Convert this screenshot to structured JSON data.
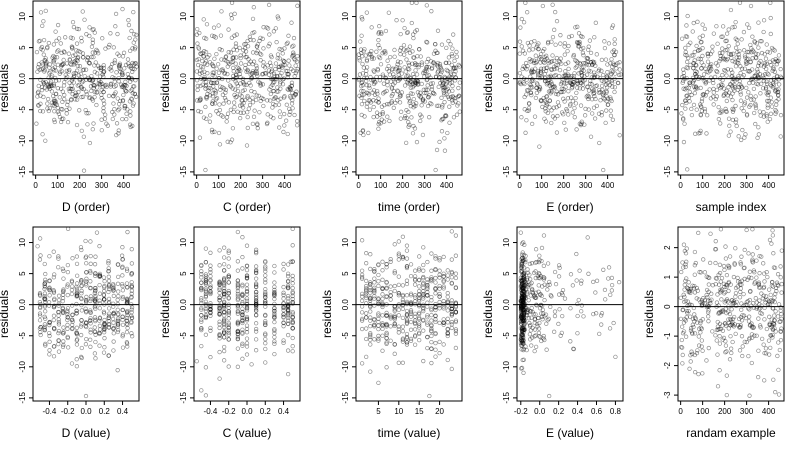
{
  "chart_data": [
    {
      "type": "scatter",
      "title": "",
      "xlabel": "D (order)",
      "ylabel": "residuals",
      "xlim": [
        -12,
        470
      ],
      "ylim": [
        -15.5,
        12.5
      ],
      "xticks": [
        0,
        100,
        200,
        300,
        400
      ],
      "xtick_labels": [
        "0",
        "100",
        "200",
        "300",
        "400"
      ],
      "yticks": [
        -15,
        -10,
        -5,
        0,
        5,
        10
      ],
      "ytick_labels": [
        "-15",
        "-10",
        "-5",
        "0.0",
        "5",
        "10"
      ],
      "hline": 0,
      "grid": false,
      "n_points": 470,
      "point_color": "#000000",
      "point_opacity": 0.45,
      "points": [
        [
          30,
          8.5
        ],
        [
          60,
          -5.2
        ],
        [
          95,
          6.1
        ],
        [
          130,
          -3.3
        ],
        [
          170,
          9.1
        ],
        [
          210,
          -8.4
        ],
        [
          220,
          -14.8
        ],
        [
          260,
          4.2
        ],
        [
          300,
          -6.6
        ],
        [
          340,
          7.3
        ],
        [
          395,
          11.2
        ],
        [
          430,
          -7.4
        ],
        [
          455,
          2.5
        ]
      ]
    },
    {
      "type": "scatter",
      "title": "",
      "xlabel": "C (order)",
      "ylabel": "residuals",
      "xlim": [
        -12,
        470
      ],
      "ylim": [
        -15.5,
        12.5
      ],
      "xticks": [
        0,
        100,
        200,
        300,
        400
      ],
      "xtick_labels": [
        "0",
        "100",
        "200",
        "300",
        "400"
      ],
      "yticks": [
        -15,
        -10,
        -5,
        0,
        5,
        10
      ],
      "ytick_labels": [
        "-15",
        "-10",
        "-5",
        "0.0",
        "5",
        "10"
      ],
      "hline": 0,
      "grid": false,
      "n_points": 470,
      "point_color": "#000000",
      "point_opacity": 0.45,
      "points": [
        [
          15,
          -9.5
        ],
        [
          40,
          -14.7
        ],
        [
          80,
          6.8
        ],
        [
          120,
          -6.1
        ],
        [
          160,
          9.7
        ],
        [
          230,
          -5.4
        ],
        [
          260,
          11.5
        ],
        [
          320,
          -7.3
        ],
        [
          360,
          8.1
        ],
        [
          410,
          -4.2
        ],
        [
          440,
          5.3
        ]
      ]
    },
    {
      "type": "scatter",
      "title": "",
      "xlabel": "time (order)",
      "ylabel": "residuals",
      "xlim": [
        -12,
        470
      ],
      "ylim": [
        -15.5,
        12.5
      ],
      "xticks": [
        0,
        100,
        200,
        300,
        400
      ],
      "xtick_labels": [
        "0",
        "100",
        "200",
        "300",
        "400"
      ],
      "yticks": [
        -15,
        -10,
        -5,
        0,
        5,
        10
      ],
      "ytick_labels": [
        "-15",
        "-10",
        "-5",
        "0.0",
        "5",
        "10"
      ],
      "hline": 0,
      "grid": false,
      "n_points": 470,
      "point_color": "#000000",
      "point_opacity": 0.45,
      "points": [
        [
          20,
          -8.3
        ],
        [
          90,
          6.2
        ],
        [
          140,
          -6.8
        ],
        [
          200,
          9.4
        ],
        [
          250,
          -4.6
        ],
        [
          310,
          11.8
        ],
        [
          350,
          -14.7
        ],
        [
          390,
          -9.6
        ],
        [
          430,
          7.1
        ],
        [
          460,
          -5.3
        ]
      ]
    },
    {
      "type": "scatter",
      "title": "",
      "xlabel": "E (order)",
      "ylabel": "residuals",
      "xlim": [
        -12,
        470
      ],
      "ylim": [
        -15.5,
        12.5
      ],
      "xticks": [
        0,
        100,
        200,
        300,
        400
      ],
      "xtick_labels": [
        "0",
        "100",
        "200",
        "300",
        "400"
      ],
      "yticks": [
        -15,
        -10,
        -5,
        0,
        5,
        10
      ],
      "ytick_labels": [
        "-15",
        "-10",
        "-5",
        "0.0",
        "5",
        "10"
      ],
      "hline": 0,
      "grid": false,
      "n_points": 470,
      "point_color": "#000000",
      "point_opacity": 0.45,
      "points": [
        [
          10,
          9.6
        ],
        [
          70,
          -6.1
        ],
        [
          150,
          11.9
        ],
        [
          210,
          -8.2
        ],
        [
          270,
          7.3
        ],
        [
          330,
          -5.6
        ],
        [
          380,
          -14.7
        ],
        [
          420,
          8.2
        ],
        [
          455,
          -9.1
        ]
      ]
    },
    {
      "type": "scatter",
      "title": "",
      "xlabel": "sample index",
      "ylabel": "residuals",
      "xlim": [
        -12,
        470
      ],
      "ylim": [
        -15.5,
        12.5
      ],
      "xticks": [
        0,
        100,
        200,
        300,
        400
      ],
      "xtick_labels": [
        "0",
        "100",
        "200",
        "300",
        "400"
      ],
      "yticks": [
        -15,
        -10,
        -5,
        0,
        5,
        10
      ],
      "ytick_labels": [
        "-15",
        "-10",
        "-5",
        "0.0",
        "5",
        "10"
      ],
      "hline": 0,
      "grid": false,
      "n_points": 470,
      "point_color": "#000000",
      "point_opacity": 0.45,
      "points": [
        [
          15,
          -10.2
        ],
        [
          30,
          -14.6
        ],
        [
          100,
          8.7
        ],
        [
          180,
          -7.2
        ],
        [
          250,
          9.1
        ],
        [
          320,
          11.7
        ],
        [
          360,
          -5.3
        ],
        [
          410,
          7.2
        ],
        [
          455,
          -9.3
        ]
      ]
    },
    {
      "type": "scatter",
      "title": "",
      "xlabel": "D (value)",
      "ylabel": "residuals",
      "xlim": [
        -0.58,
        0.58
      ],
      "ylim": [
        -15.5,
        12.5
      ],
      "xticks": [
        -0.4,
        -0.2,
        0.0,
        0.2,
        0.4
      ],
      "xtick_labels": [
        "-0.4",
        "-0.2",
        "0.0",
        "0.2",
        "0.4"
      ],
      "yticks": [
        -15,
        -10,
        -5,
        0,
        5,
        10
      ],
      "ytick_labels": [
        "-15",
        "-10",
        "-5",
        "0.0",
        "5",
        "10"
      ],
      "hline": 0,
      "grid": false,
      "n_points": 470,
      "point_color": "#000000",
      "point_opacity": 0.45,
      "points": [
        [
          -0.53,
          9.4
        ],
        [
          -0.35,
          -8.3
        ],
        [
          -0.1,
          -9.9
        ],
        [
          0.0,
          -14.7
        ],
        [
          0.12,
          11.6
        ],
        [
          0.25,
          -8.2
        ],
        [
          0.4,
          6.1
        ]
      ]
    },
    {
      "type": "scatter",
      "title": "",
      "xlabel": "C (value)",
      "ylabel": "residuals",
      "xlim": [
        -0.58,
        0.58
      ],
      "ylim": [
        -15.5,
        12.5
      ],
      "xticks": [
        -0.4,
        -0.2,
        0.0,
        0.2,
        0.4
      ],
      "xtick_labels": [
        "-0.4",
        "-0.2",
        "0.0",
        "0.2",
        "0.4"
      ],
      "yticks": [
        -15,
        -10,
        -5,
        0,
        5,
        10
      ],
      "ytick_labels": [
        "-15",
        "-10",
        "-5",
        "0.0",
        "5",
        "10"
      ],
      "hline": 0,
      "grid": false,
      "n_points": 470,
      "point_color": "#000000",
      "point_opacity": 0.45,
      "points": [
        [
          -0.55,
          -9.1
        ],
        [
          -0.45,
          -14.6
        ],
        [
          -0.1,
          11.7
        ],
        [
          0.05,
          -9.6
        ],
        [
          0.3,
          -6.3
        ],
        [
          0.48,
          6.9
        ]
      ]
    },
    {
      "type": "scatter",
      "title": "",
      "xlabel": "time (value)",
      "ylabel": "residuals",
      "xlim": [
        -0.5,
        25.5
      ],
      "ylim": [
        -15.5,
        12.5
      ],
      "xticks": [
        5,
        10,
        15,
        20
      ],
      "xtick_labels": [
        "5",
        "10",
        "15",
        "20"
      ],
      "yticks": [
        -15,
        -10,
        -5,
        0,
        5,
        10
      ],
      "ytick_labels": [
        "-15",
        "-10",
        "-5",
        "0.0",
        "5",
        "10"
      ],
      "hline": 0,
      "grid": false,
      "n_points": 470,
      "point_color": "#000000",
      "point_opacity": 0.45,
      "points": [
        [
          2,
          -8.4
        ],
        [
          8,
          6.9
        ],
        [
          12,
          9.5
        ],
        [
          17.5,
          -14.7
        ],
        [
          20,
          -7.8
        ],
        [
          23,
          11.8
        ]
      ]
    },
    {
      "type": "scatter",
      "title": "",
      "xlabel": "E (value)",
      "ylabel": "residuals",
      "xlim": [
        -0.24,
        0.88
      ],
      "ylim": [
        -15.5,
        12.5
      ],
      "xticks": [
        -0.2,
        0.0,
        0.2,
        0.4,
        0.6,
        0.8
      ],
      "xtick_labels": [
        "-0.2",
        "0.0",
        "0.2",
        "0.4",
        "0.6",
        "0.8"
      ],
      "yticks": [
        -15,
        -10,
        -5,
        0,
        5,
        10
      ],
      "ytick_labels": [
        "-15",
        "-10",
        "-5",
        "0.0",
        "5",
        "10"
      ],
      "hline": 0,
      "grid": false,
      "n_points": 470,
      "point_color": "#000000",
      "point_opacity": 0.45,
      "points": [
        [
          -0.2,
          11.6
        ],
        [
          0.1,
          -14.7
        ],
        [
          0.35,
          3.1
        ],
        [
          0.65,
          -3.2
        ],
        [
          0.8,
          -8.4
        ]
      ]
    },
    {
      "type": "scatter",
      "title": "",
      "xlabel": "randam example",
      "ylabel": "residuals",
      "xlim": [
        -12,
        470
      ],
      "ylim": [
        -3.2,
        2.7
      ],
      "xticks": [
        0,
        100,
        200,
        300,
        400
      ],
      "xtick_labels": [
        "0",
        "100",
        "200",
        "300",
        "400"
      ],
      "yticks": [
        -3,
        -2,
        -1,
        0,
        1,
        2
      ],
      "ytick_labels": [
        "-3",
        "-2",
        "-1",
        "0",
        "1",
        "2"
      ],
      "hline": 0,
      "grid": false,
      "n_points": 470,
      "point_color": "#000000",
      "point_opacity": 0.45,
      "points": [
        [
          15,
          2.1
        ],
        [
          80,
          2.5
        ],
        [
          170,
          -2.7
        ],
        [
          210,
          -3.0
        ],
        [
          300,
          2.6
        ],
        [
          380,
          -2.5
        ],
        [
          430,
          -2.9
        ],
        [
          460,
          1.9
        ]
      ]
    }
  ]
}
